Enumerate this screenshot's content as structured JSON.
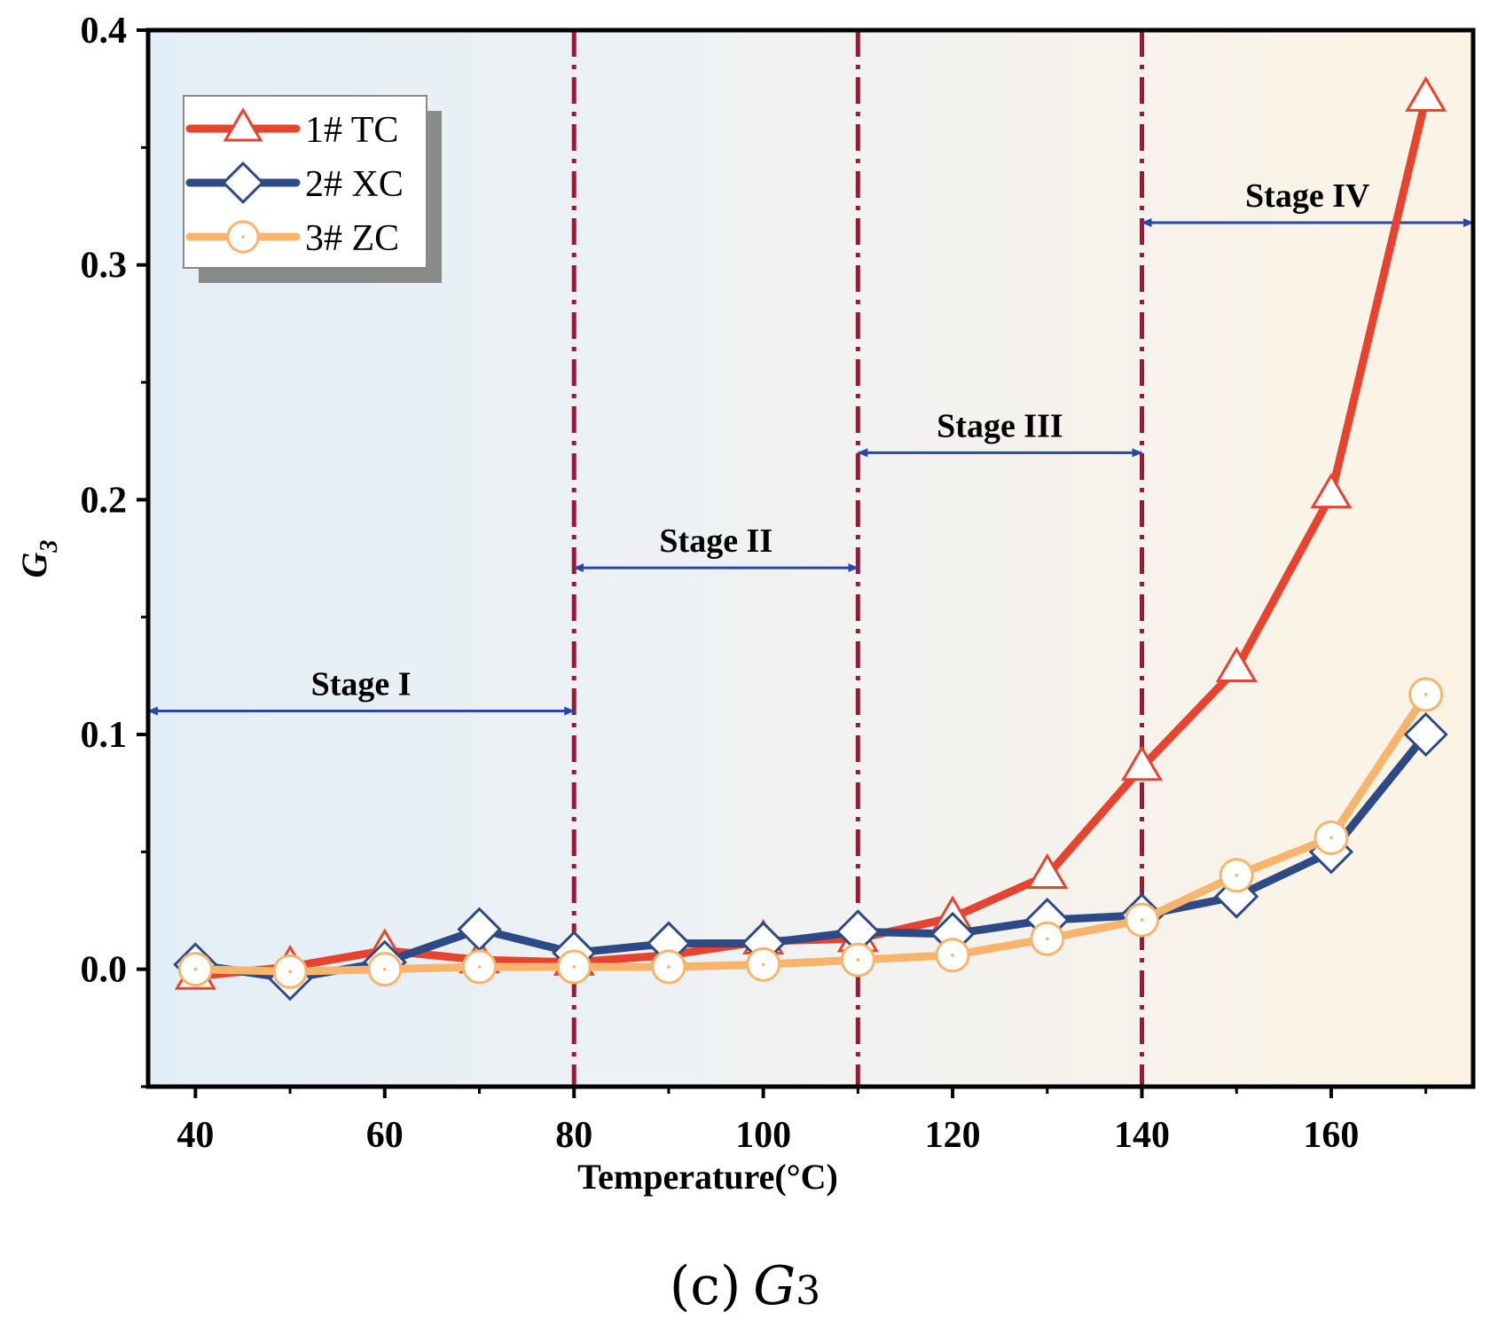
{
  "chart_data": {
    "type": "line",
    "xlabel": "Temperature(°C)",
    "ylabel_main": "G",
    "ylabel_sub": "3",
    "xlim": [
      35,
      175
    ],
    "ylim": [
      -0.05,
      0.4
    ],
    "xticks": [
      40,
      60,
      80,
      100,
      120,
      140,
      160
    ],
    "xtick_labels": [
      "40",
      "60",
      "80",
      "100",
      "120",
      "140",
      "160"
    ],
    "yticks": [
      0.0,
      0.1,
      0.2,
      0.3,
      0.4
    ],
    "ytick_labels": [
      "0.0",
      "0.1",
      "0.2",
      "0.3",
      "0.4"
    ],
    "x": [
      40,
      50,
      60,
      70,
      80,
      90,
      100,
      110,
      120,
      130,
      140,
      150,
      160,
      170
    ],
    "series": [
      {
        "name": "1# TC",
        "marker": "triangle",
        "color": "#e8432f",
        "values": [
          -0.003,
          0.001,
          0.008,
          0.004,
          0.003,
          0.006,
          0.012,
          0.013,
          0.022,
          0.04,
          0.086,
          0.128,
          0.202,
          0.371
        ]
      },
      {
        "name": "2# XC",
        "marker": "diamond",
        "color": "#2e4a86",
        "values": [
          0.002,
          -0.004,
          0.003,
          0.017,
          0.007,
          0.011,
          0.011,
          0.016,
          0.015,
          0.021,
          0.023,
          0.031,
          0.05,
          0.1
        ]
      },
      {
        "name": "3# ZC",
        "marker": "circle",
        "color": "#f7b46a",
        "values": [
          0.0,
          -0.001,
          0.0,
          0.001,
          0.001,
          0.001,
          0.002,
          0.004,
          0.006,
          0.013,
          0.021,
          0.04,
          0.056,
          0.117
        ]
      }
    ],
    "stage_boundaries": [
      80,
      110,
      140
    ],
    "stages": [
      {
        "label": "Stage I",
        "x_from": 35,
        "x_to": 80,
        "y": 0.11
      },
      {
        "label": "Stage II",
        "x_from": 80,
        "x_to": 110,
        "y": 0.171
      },
      {
        "label": "Stage III",
        "x_from": 110,
        "x_to": 140,
        "y": 0.22
      },
      {
        "label": "Stage IV",
        "x_from": 140,
        "x_to": 175,
        "y": 0.318
      }
    ],
    "legend_position": "top-left",
    "grid": false
  },
  "caption": {
    "panel": "(c)",
    "symbol_main": "G",
    "symbol_sub": "3"
  },
  "colors": {
    "stage_line": "#b01030",
    "stage_arrow": "#2b46a8",
    "bg_left": "#e2eef7",
    "bg_right": "#fcf3e4"
  }
}
